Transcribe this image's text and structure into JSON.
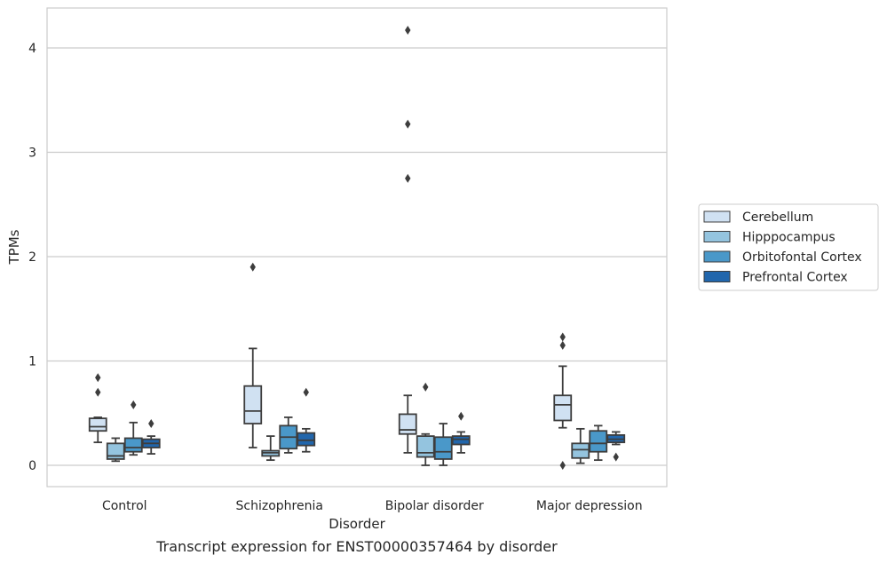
{
  "chart_data": {
    "type": "box",
    "title": "",
    "caption": "Transcript expression for ENST00000357464 by disorder",
    "xlabel": "Disorder",
    "ylabel": "TPMs",
    "ylim": [
      -0.2,
      4.38
    ],
    "yticks": [
      0,
      1,
      2,
      3,
      4
    ],
    "grid": "horizontal",
    "legend_position": "right",
    "categories": [
      "Control",
      "Schizophrenia",
      "Bipolar disorder",
      "Major depression"
    ],
    "series": [
      {
        "name": "Cerebellum",
        "color": "#d0e1f2",
        "boxes": [
          {
            "whisker_low": 0.22,
            "q1": 0.33,
            "median": 0.37,
            "q3": 0.45,
            "whisker_high": 0.46,
            "outliers": [
              0.7,
              0.84
            ]
          },
          {
            "whisker_low": 0.17,
            "q1": 0.4,
            "median": 0.52,
            "q3": 0.76,
            "whisker_high": 1.12,
            "outliers": [
              1.9
            ]
          },
          {
            "whisker_low": 0.12,
            "q1": 0.3,
            "median": 0.34,
            "q3": 0.49,
            "whisker_high": 0.67,
            "outliers": [
              2.75,
              3.27,
              4.17
            ]
          },
          {
            "whisker_low": 0.36,
            "q1": 0.43,
            "median": 0.58,
            "q3": 0.67,
            "whisker_high": 0.95,
            "outliers": [
              1.15,
              1.23,
              0.0
            ]
          }
        ]
      },
      {
        "name": "Hipppocampus",
        "color": "#94c4df",
        "boxes": [
          {
            "whisker_low": 0.04,
            "q1": 0.06,
            "median": 0.09,
            "q3": 0.21,
            "whisker_high": 0.26,
            "outliers": []
          },
          {
            "whisker_low": 0.05,
            "q1": 0.09,
            "median": 0.12,
            "q3": 0.14,
            "whisker_high": 0.28,
            "outliers": []
          },
          {
            "whisker_low": 0.0,
            "q1": 0.08,
            "median": 0.12,
            "q3": 0.28,
            "whisker_high": 0.3,
            "outliers": [
              0.75
            ]
          },
          {
            "whisker_low": 0.02,
            "q1": 0.07,
            "median": 0.15,
            "q3": 0.21,
            "whisker_high": 0.35,
            "outliers": []
          }
        ]
      },
      {
        "name": "Orbitofontal Cortex",
        "color": "#4a98c9",
        "boxes": [
          {
            "whisker_low": 0.1,
            "q1": 0.13,
            "median": 0.17,
            "q3": 0.26,
            "whisker_high": 0.41,
            "outliers": [
              0.58
            ]
          },
          {
            "whisker_low": 0.12,
            "q1": 0.16,
            "median": 0.27,
            "q3": 0.38,
            "whisker_high": 0.46,
            "outliers": []
          },
          {
            "whisker_low": 0.0,
            "q1": 0.06,
            "median": 0.13,
            "q3": 0.27,
            "whisker_high": 0.4,
            "outliers": []
          },
          {
            "whisker_low": 0.05,
            "q1": 0.13,
            "median": 0.21,
            "q3": 0.33,
            "whisker_high": 0.38,
            "outliers": []
          }
        ]
      },
      {
        "name": "Prefrontal Cortex",
        "color": "#2166ac",
        "boxes": [
          {
            "whisker_low": 0.11,
            "q1": 0.17,
            "median": 0.21,
            "q3": 0.25,
            "whisker_high": 0.28,
            "outliers": [
              0.4
            ]
          },
          {
            "whisker_low": 0.13,
            "q1": 0.19,
            "median": 0.24,
            "q3": 0.31,
            "whisker_high": 0.35,
            "outliers": [
              0.7
            ]
          },
          {
            "whisker_low": 0.12,
            "q1": 0.2,
            "median": 0.25,
            "q3": 0.28,
            "whisker_high": 0.32,
            "outliers": [
              0.47
            ]
          },
          {
            "whisker_low": 0.2,
            "q1": 0.22,
            "median": 0.25,
            "q3": 0.29,
            "whisker_high": 0.32,
            "outliers": [
              0.08
            ]
          }
        ]
      }
    ]
  }
}
